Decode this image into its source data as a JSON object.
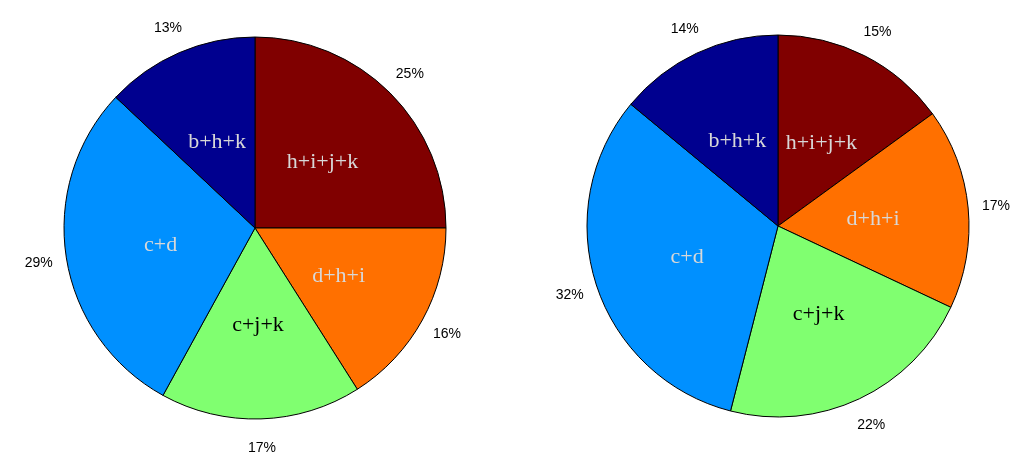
{
  "chart_data": [
    {
      "type": "pie",
      "categories": [
        "h+i+j+k",
        "d+h+i",
        "c+j+k",
        "c+d",
        "b+h+k"
      ],
      "values": [
        25,
        16,
        17,
        29,
        13
      ],
      "colors": [
        "#800000",
        "#ff7000",
        "#80ff70",
        "#0090ff",
        "#00008f"
      ],
      "value_labels": [
        "25%",
        "16%",
        "17%",
        "29%",
        "13%"
      ]
    },
    {
      "type": "pie",
      "categories": [
        "h+i+j+k",
        "d+h+i",
        "c+j+k",
        "c+d",
        "b+h+k"
      ],
      "values": [
        15,
        17,
        22,
        32,
        14
      ],
      "colors": [
        "#800000",
        "#ff7000",
        "#80ff70",
        "#0090ff",
        "#00008f"
      ],
      "value_labels": [
        "15%",
        "17%",
        "22%",
        "32%",
        "14%"
      ]
    }
  ]
}
